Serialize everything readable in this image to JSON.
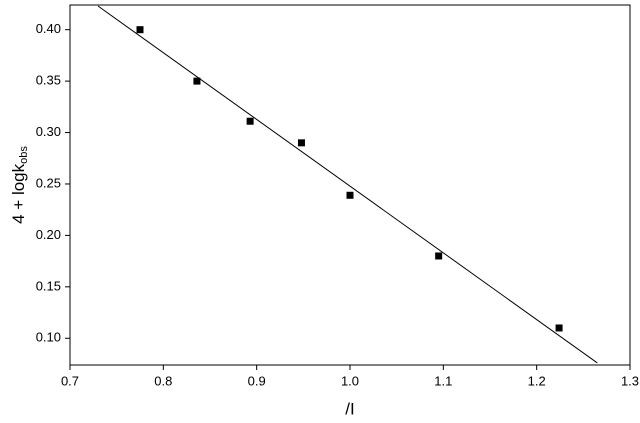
{
  "chart_data": {
    "type": "scatter",
    "xlabel": "/I",
    "ylabel": "4 + logk",
    "ylabel_sub": "obs",
    "x": [
      0.775,
      0.836,
      0.893,
      0.948,
      1.0,
      1.095,
      1.224
    ],
    "values": [
      0.4,
      0.35,
      0.311,
      0.29,
      0.239,
      0.18,
      0.11
    ],
    "color": "#000000",
    "fit": {
      "x": [
        0.73,
        1.265
      ],
      "values": [
        0.423,
        0.076
      ],
      "color": "#000000"
    },
    "xlim": [
      0.7,
      1.3
    ],
    "xticks": [
      0.7,
      0.8,
      0.9,
      {
        "value": 1.0,
        "label": "1.0"
      },
      1.1,
      1.2,
      1.3
    ],
    "ylim": [
      0.074,
      0.424
    ],
    "yticks": [
      {
        "value": 0.1,
        "label": "0.10"
      },
      0.15,
      {
        "value": 0.2,
        "label": "0.20"
      },
      0.25,
      {
        "value": 0.3,
        "label": "0.30"
      },
      0.35,
      {
        "value": 0.4,
        "label": "0.40"
      }
    ]
  }
}
